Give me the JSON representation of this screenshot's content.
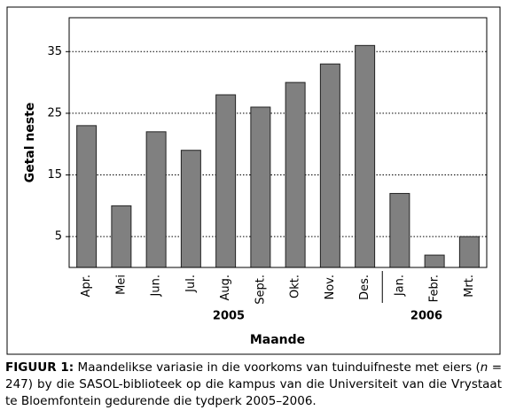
{
  "chart_data": {
    "type": "bar",
    "y_label": "Getal neste",
    "x_label": "Maande",
    "categories": [
      "Apr.",
      "Mei",
      "Jun.",
      "Jul.",
      "Aug.",
      "Sept.",
      "Okt.",
      "Nov.",
      "Des.",
      "Jan.",
      "Febr.",
      "Mrt."
    ],
    "values": [
      23,
      10,
      22,
      19,
      28,
      26,
      30,
      33,
      36,
      12,
      2,
      5
    ],
    "color": "#808080",
    "ylim": [
      0,
      40.5
    ],
    "yticks": [
      5,
      15,
      25,
      35
    ],
    "grid": true,
    "year_labels": [
      "2005",
      "2006"
    ]
  },
  "caption": {
    "label": "FIGUUR 1:",
    "text_before": " Maandelikse variasie in die voorkoms van tuinduifneste met eiers (",
    "italic": "n",
    "text_after": " = 247) by die SASOL-biblioteek op die kampus van die Universiteit van die Vrystaat te Bloemfontein gedurende die tydperk 2005–2006."
  }
}
